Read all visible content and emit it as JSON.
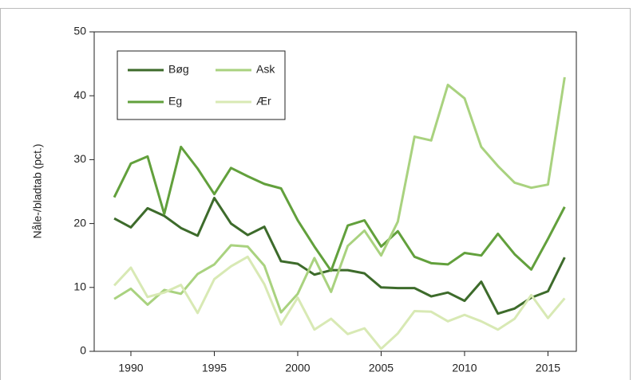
{
  "chart_data": {
    "type": "line",
    "y_label": "Nåle-/bladtab (pct.)",
    "x": [
      1989,
      1990,
      1991,
      1992,
      1993,
      1994,
      1995,
      1996,
      1997,
      1998,
      1999,
      2000,
      2001,
      2002,
      2003,
      2004,
      2005,
      2006,
      2007,
      2008,
      2009,
      2010,
      2011,
      2012,
      2013,
      2014,
      2015,
      2016
    ],
    "series": [
      {
        "name": "Bøg",
        "color": "#3d6b2b",
        "values": [
          20.8,
          19.4,
          22.4,
          21.2,
          19.3,
          18.1,
          24.0,
          20.0,
          18.2,
          19.5,
          14.1,
          13.7,
          12.0,
          12.7,
          12.7,
          12.2,
          10.0,
          9.9,
          9.9,
          8.6,
          9.2,
          7.9,
          10.9,
          5.9,
          6.7,
          8.4,
          9.4,
          14.7
        ]
      },
      {
        "name": "Eg",
        "color": "#62a03c",
        "values": [
          24.1,
          29.4,
          30.5,
          21.5,
          32.0,
          28.6,
          24.6,
          28.7,
          27.4,
          26.2,
          25.5,
          20.5,
          16.4,
          12.6,
          19.7,
          20.5,
          16.4,
          18.8,
          14.8,
          13.8,
          13.6,
          15.4,
          15.0,
          18.4,
          15.2,
          12.8,
          17.6,
          22.6
        ]
      },
      {
        "name": "Ask",
        "color": "#a9d27f",
        "values": [
          8.2,
          9.8,
          7.3,
          9.6,
          9.0,
          12.1,
          13.6,
          16.6,
          16.4,
          13.4,
          6.1,
          9.0,
          14.6,
          9.3,
          16.5,
          18.9,
          15.0,
          20.3,
          33.6,
          33.0,
          41.7,
          39.6,
          32.0,
          29.0,
          26.4,
          25.6,
          26.1,
          42.9
        ]
      },
      {
        "name": "Ær",
        "color": "#d8e9b4",
        "values": [
          10.3,
          13.1,
          8.5,
          9.2,
          10.4,
          6.0,
          11.3,
          13.3,
          14.8,
          10.5,
          4.2,
          8.4,
          3.4,
          5.1,
          2.7,
          3.6,
          0.4,
          2.8,
          6.3,
          6.2,
          4.7,
          5.7,
          4.7,
          3.4,
          5.1,
          8.8,
          5.2,
          8.3
        ]
      }
    ],
    "xlim": [
      1987.8,
      2016.7
    ],
    "xticks": [
      1990,
      1995,
      2000,
      2005,
      2010,
      2015
    ],
    "ylim": [
      0,
      50
    ],
    "yticks": [
      0,
      10,
      20,
      30,
      40,
      50
    ]
  }
}
